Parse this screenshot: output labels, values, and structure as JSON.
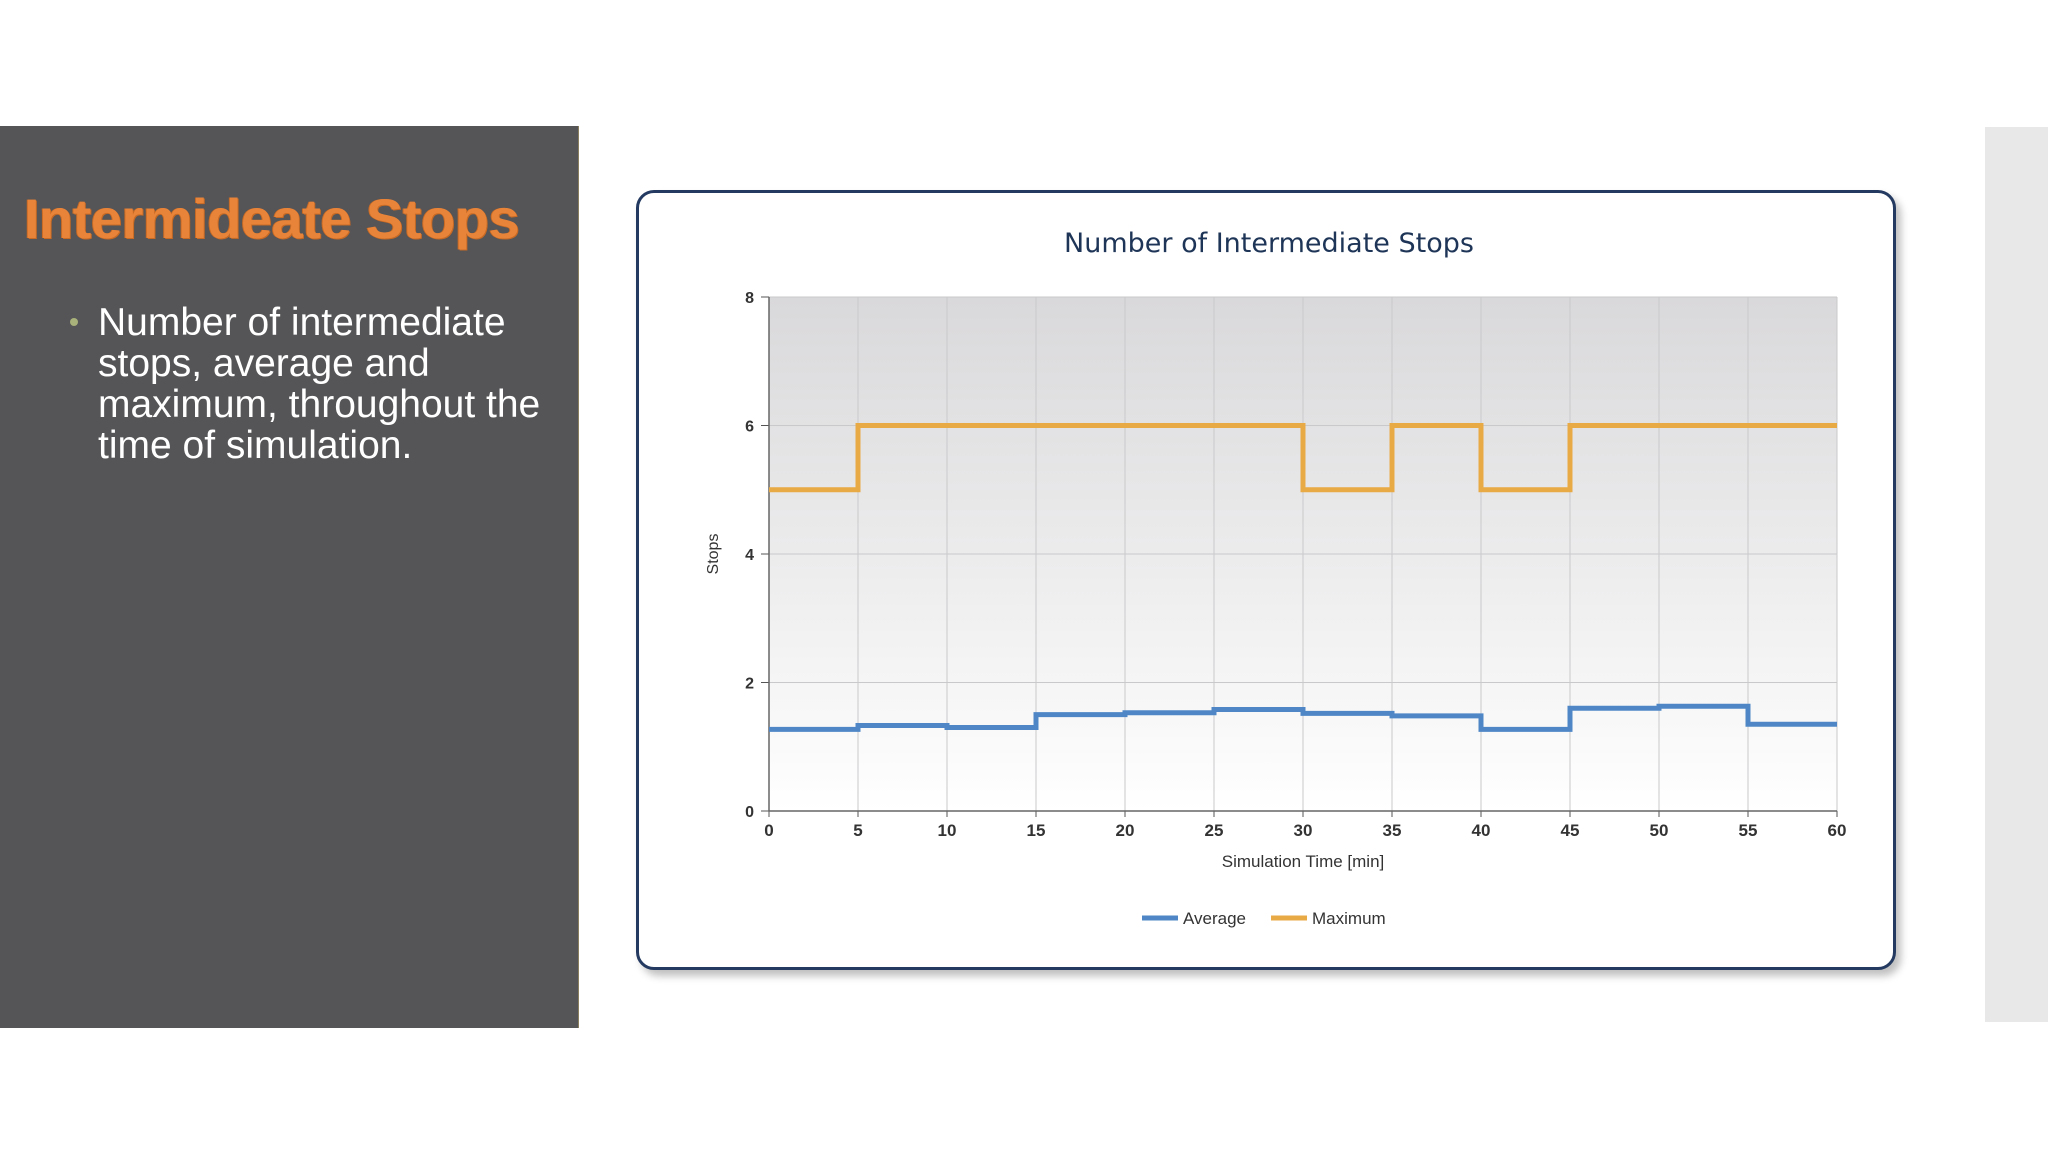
{
  "slide": {
    "title": "Intermideate Stops",
    "bullets": [
      "Number of intermediate stops, average and maximum, throughout the time of simulation."
    ]
  },
  "colors": {
    "panel": "#555456",
    "title": "#e8843a",
    "average": "#4f87c6",
    "maximum": "#e8aa45",
    "card_border": "#243a60"
  },
  "chart_data": {
    "type": "line",
    "step": true,
    "title": "Number of Intermediate Stops",
    "xlabel": "Simulation Time [min]",
    "ylabel": "Stops",
    "xlim": [
      0,
      60
    ],
    "ylim": [
      0,
      8
    ],
    "xticks": [
      0,
      5,
      10,
      15,
      20,
      25,
      30,
      35,
      40,
      45,
      50,
      55,
      60
    ],
    "yticks": [
      0,
      2,
      4,
      6,
      8
    ],
    "grid": true,
    "legend": "bottom-center",
    "x": [
      0,
      5,
      10,
      15,
      20,
      25,
      30,
      35,
      40,
      45,
      50,
      55,
      60
    ],
    "series": [
      {
        "name": "Average",
        "color": "#4f87c6",
        "values": [
          1.27,
          1.33,
          1.3,
          1.5,
          1.53,
          1.58,
          1.52,
          1.48,
          1.27,
          1.6,
          1.63,
          1.35,
          1.35
        ]
      },
      {
        "name": "Maximum",
        "color": "#e8aa45",
        "values": [
          5,
          6,
          6,
          6,
          6,
          6,
          5,
          6,
          5,
          6,
          6,
          6,
          6
        ]
      }
    ]
  }
}
